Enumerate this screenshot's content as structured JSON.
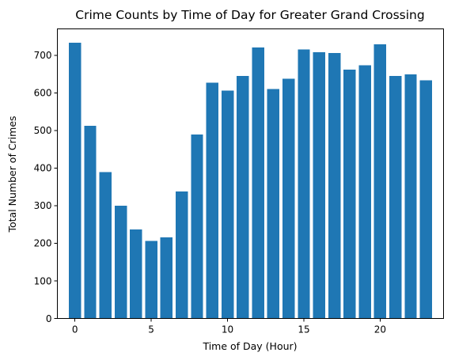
{
  "chart_data": {
    "type": "bar",
    "title": "Crime Counts by Time of Day for Greater Grand Crossing",
    "xlabel": "Time of Day (Hour)",
    "ylabel": "Total Number of Crimes",
    "x": [
      0,
      1,
      2,
      3,
      4,
      5,
      6,
      7,
      8,
      9,
      10,
      11,
      12,
      13,
      14,
      15,
      16,
      17,
      18,
      19,
      20,
      21,
      22,
      23
    ],
    "values": [
      733,
      512,
      389,
      300,
      237,
      206,
      216,
      338,
      489,
      627,
      606,
      645,
      721,
      610,
      637,
      715,
      708,
      706,
      662,
      673,
      729,
      645,
      649,
      633
    ],
    "xlim": [
      -1.15,
      24.15
    ],
    "ylim": [
      0,
      770
    ],
    "xticks": [
      0,
      5,
      10,
      15,
      20
    ],
    "xtick_labels": [
      "0",
      "5",
      "10",
      "15",
      "20"
    ],
    "yticks": [
      0,
      100,
      200,
      300,
      400,
      500,
      600,
      700
    ],
    "ytick_labels": [
      "0",
      "100",
      "200",
      "300",
      "400",
      "500",
      "600",
      "700"
    ],
    "grid": false,
    "bar_color": "#1f77b4"
  }
}
